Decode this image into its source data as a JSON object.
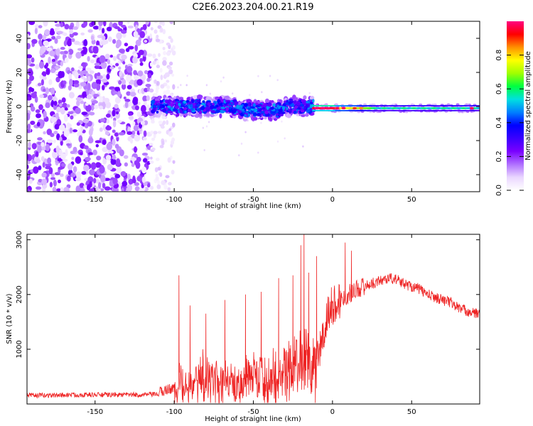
{
  "title": "C2E6.2023.204.00.21.R19",
  "colors": {
    "snr_line": "#ee2222",
    "colormap": [
      "#ffffff",
      "#ead6ff",
      "#b070ff",
      "#7a00ff",
      "#3a00ff",
      "#0000ff",
      "#0080ff",
      "#00e0e0",
      "#00ff40",
      "#a0ff00",
      "#ffff00",
      "#ff9000",
      "#ff0000",
      "#ff0080"
    ]
  },
  "chart_data": [
    {
      "type": "heatmap",
      "title": "C2E6.2023.204.00.21.R19",
      "xlabel": "Height of straight line (km)",
      "ylabel": "Frequency (Hz)",
      "xlim": [
        -193,
        93
      ],
      "ylim": [
        -50,
        50
      ],
      "xticks": [
        -150,
        -100,
        -50,
        0,
        50
      ],
      "yticks": [
        -40,
        -20,
        0,
        20,
        40
      ],
      "colorbar": {
        "label": "Normalized spectral amplitude",
        "range": [
          0,
          1
        ],
        "ticks": [
          0.0,
          0.2,
          0.4,
          0.6,
          0.8
        ]
      },
      "regions": [
        {
          "x_range": [
            -193,
            -115
          ],
          "freq_range": [
            -50,
            50
          ],
          "amplitude": "0.05-0.25",
          "pattern": "scattered noise"
        },
        {
          "x_range": [
            -115,
            -100
          ],
          "freq_range": [
            -50,
            50
          ],
          "amplitude": "0.02-0.08",
          "pattern": "sparse noise"
        },
        {
          "x_range": [
            -115,
            -12
          ],
          "freq_center": 0,
          "freq_halfwidth": 5,
          "amplitude": "0.2-0.5",
          "pattern": "broad band"
        },
        {
          "x_range": [
            -12,
            93
          ],
          "freq_center": -1,
          "freq_halfwidth": 2,
          "amplitude": "0.5-1.0",
          "pattern": "narrow band"
        }
      ]
    },
    {
      "type": "line",
      "xlabel": "Height of straight line (km)",
      "ylabel": "SNR (10 * v/v)",
      "xlim": [
        -193,
        93
      ],
      "ylim": [
        0,
        3100
      ],
      "xticks": [
        -150,
        -100,
        -50,
        0,
        50
      ],
      "yticks": [
        1000,
        2000,
        3000
      ],
      "series": [
        {
          "x": [
            -193,
            -180,
            -160,
            -140,
            -120,
            -110,
            -105,
            -100,
            -98,
            -95,
            -92,
            -90,
            -85,
            -80,
            -75,
            -70,
            -65,
            -60,
            -55,
            -50,
            -45,
            -40,
            -35,
            -30,
            -25,
            -22,
            -20,
            -18,
            -15,
            -10,
            -7,
            -5,
            -3,
            0,
            5,
            10,
            15,
            20,
            25,
            30,
            35,
            40,
            45,
            50,
            55,
            60,
            65,
            70,
            75,
            80,
            85,
            90,
            93
          ],
          "y": [
            140,
            140,
            150,
            150,
            150,
            160,
            220,
            260,
            280,
            900,
            600,
            400,
            700,
            650,
            550,
            600,
            700,
            650,
            600,
            700,
            750,
            650,
            800,
            900,
            1000,
            1100,
            1200,
            1050,
            1000,
            800,
            1100,
            1300,
            1650,
            1800,
            1900,
            2000,
            2100,
            2150,
            2200,
            2250,
            2300,
            2280,
            2200,
            2150,
            2100,
            2000,
            1950,
            1900,
            1850,
            1750,
            1700,
            1650,
            1650
          ]
        }
      ],
      "peaks": [
        {
          "x": -97,
          "y": 2350
        },
        {
          "x": -90,
          "y": 1800
        },
        {
          "x": -80,
          "y": 1650
        },
        {
          "x": -68,
          "y": 1900
        },
        {
          "x": -55,
          "y": 2000
        },
        {
          "x": -45,
          "y": 2050
        },
        {
          "x": -34,
          "y": 2300
        },
        {
          "x": -25,
          "y": 2350
        },
        {
          "x": -20,
          "y": 2900
        },
        {
          "x": -18,
          "y": 3100
        },
        {
          "x": -15,
          "y": 2400
        },
        {
          "x": -10,
          "y": 2700
        },
        {
          "x": 8,
          "y": 2950
        },
        {
          "x": 12,
          "y": 2800
        }
      ]
    }
  ]
}
